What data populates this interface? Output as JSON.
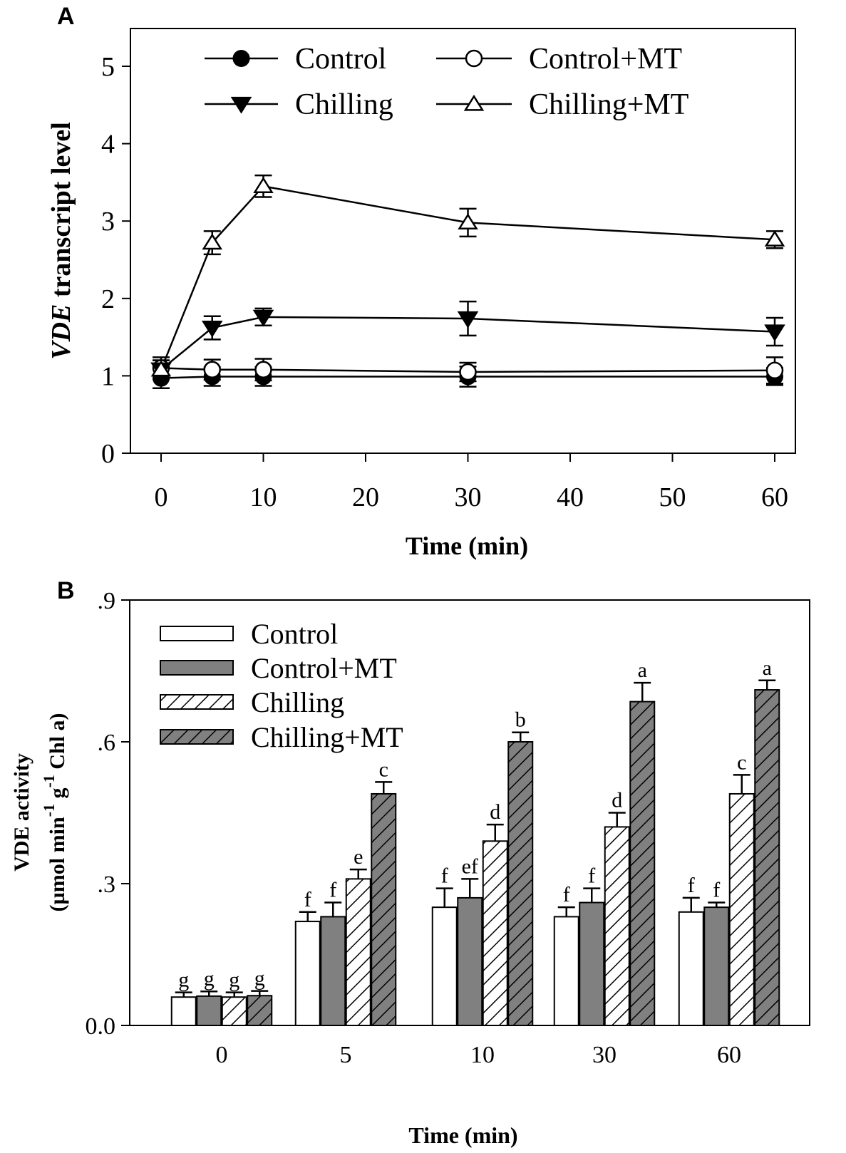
{
  "panels": {
    "a_letter": "A",
    "b_letter": "B"
  },
  "chart_data": [
    {
      "type": "line",
      "panel": "A",
      "title": "",
      "xlabel": "Time (min)",
      "ylabel_italic": "VDE",
      "ylabel_rest": " transcript level",
      "xlim": [
        -3,
        62
      ],
      "ylim": [
        0,
        5.5
      ],
      "xticks": [
        0,
        10,
        20,
        30,
        40,
        50,
        60
      ],
      "yticks": [
        0,
        1,
        2,
        3,
        4,
        5
      ],
      "legend_position": "top",
      "series": [
        {
          "name": "Control",
          "marker": "filled-circle",
          "x": [
            0,
            5,
            10,
            30,
            60
          ],
          "y": [
            0.97,
            0.99,
            0.99,
            0.99,
            0.99
          ],
          "err": [
            0.13,
            0.12,
            0.12,
            0.13,
            0.11
          ]
        },
        {
          "name": "Control+MT",
          "marker": "open-circle",
          "x": [
            0,
            5,
            10,
            30,
            60
          ],
          "y": [
            1.1,
            1.08,
            1.08,
            1.05,
            1.07
          ],
          "err": [
            0.14,
            0.13,
            0.14,
            0.12,
            0.17
          ]
        },
        {
          "name": "Chilling",
          "marker": "filled-triangle-down",
          "x": [
            0,
            5,
            10,
            30,
            60
          ],
          "y": [
            1.08,
            1.62,
            1.76,
            1.74,
            1.57
          ],
          "err": [
            0.12,
            0.15,
            0.11,
            0.22,
            0.18
          ]
        },
        {
          "name": "Chilling+MT",
          "marker": "open-triangle-up",
          "x": [
            0,
            5,
            10,
            30,
            60
          ],
          "y": [
            1.08,
            2.72,
            3.45,
            2.98,
            2.76
          ],
          "err": [
            0.12,
            0.15,
            0.14,
            0.18,
            0.11
          ]
        }
      ]
    },
    {
      "type": "bar",
      "panel": "B",
      "title": "",
      "xlabel": "Time (min)",
      "ylabel_line1": "VDE activity",
      "ylabel_line2_parts": [
        "(µmol min",
        "-1",
        " g",
        "-1",
        " Chl a)"
      ],
      "categories": [
        "0",
        "5",
        "10",
        "30",
        "60"
      ],
      "ylim": [
        0,
        0.9
      ],
      "yticks": [
        0,
        0.3,
        0.6,
        0.9
      ],
      "ytick_labels": [
        "0.0",
        ".3",
        ".6",
        ".9"
      ],
      "legend_position": "top-left",
      "series": [
        {
          "name": "Control",
          "fill": "white",
          "hatch": false,
          "values": [
            0.06,
            0.22,
            0.25,
            0.23,
            0.24
          ],
          "err": [
            0.01,
            0.02,
            0.04,
            0.02,
            0.03
          ],
          "letters": [
            "g",
            "f",
            "f",
            "f",
            "f"
          ]
        },
        {
          "name": "Control+MT",
          "fill": "gray",
          "hatch": false,
          "values": [
            0.062,
            0.23,
            0.27,
            0.26,
            0.25
          ],
          "err": [
            0.01,
            0.03,
            0.04,
            0.03,
            0.01
          ],
          "letters": [
            "g",
            "f",
            "ef",
            "f",
            "f"
          ]
        },
        {
          "name": "Chilling",
          "fill": "white",
          "hatch": true,
          "values": [
            0.06,
            0.31,
            0.39,
            0.42,
            0.49
          ],
          "err": [
            0.01,
            0.02,
            0.035,
            0.03,
            0.04
          ],
          "letters": [
            "g",
            "e",
            "d",
            "d",
            "c"
          ]
        },
        {
          "name": "Chilling+MT",
          "fill": "gray",
          "hatch": true,
          "values": [
            0.063,
            0.49,
            0.6,
            0.685,
            0.71
          ],
          "err": [
            0.01,
            0.025,
            0.02,
            0.04,
            0.02
          ],
          "letters": [
            "g",
            "c",
            "b",
            "a",
            "a"
          ]
        }
      ]
    }
  ],
  "colors": {
    "axis": "#000000",
    "bar_gray": "#808080",
    "bar_white": "#ffffff"
  }
}
